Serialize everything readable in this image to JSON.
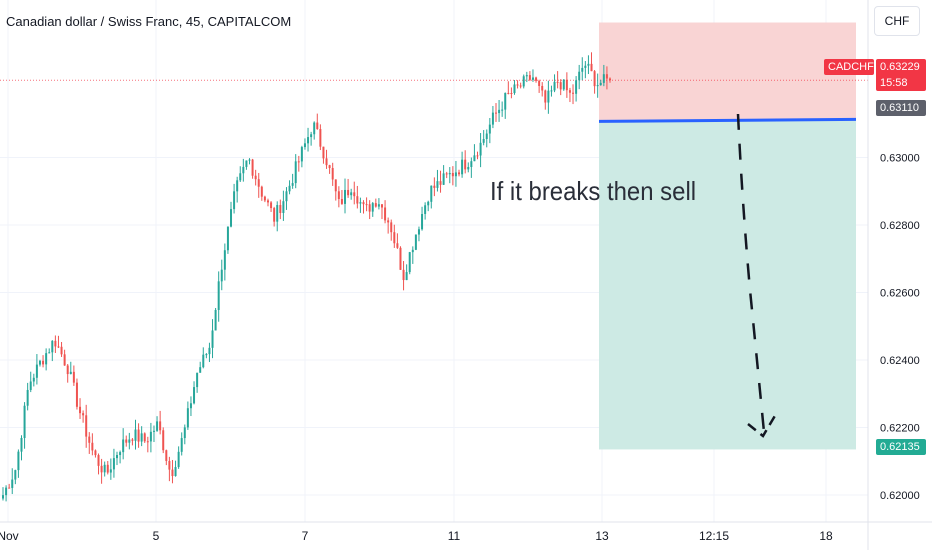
{
  "header": {
    "title": "Canadian dollar / Swiss Franc, 45, CAPITALCOM",
    "currency_button": "CHF"
  },
  "price_tags": {
    "symbol": "CADCHF",
    "last_price": "0.63229",
    "countdown": "15:58",
    "entry_price": "0.63110",
    "target_price": "0.62135"
  },
  "annotation": "If it breaks then sell",
  "colors": {
    "up": "#26a69a",
    "down": "#ef5350",
    "stop_zone": "#f9d4d4",
    "target_zone": "#cdeae4",
    "entry_line": "#2962ff",
    "last_tag": "#f23645",
    "entry_tag": "#5d606b",
    "target_tag": "#22ab94"
  },
  "chart_data": {
    "type": "candlestick",
    "title": "Canadian dollar / Swiss Franc, 45, CAPITALCOM",
    "ylim": [
      0.6194,
      0.635
    ],
    "y_ticks": [
      "0.62000",
      "0.62200",
      "0.62400",
      "0.62600",
      "0.62800",
      "0.63000"
    ],
    "x_ticks": [
      "Nov",
      "5",
      "7",
      "11",
      "13",
      "12:15",
      "18"
    ],
    "grid": true,
    "legend": "none",
    "close_path": [
      [
        "Nov",
        0.62
      ],
      [
        "",
        0.6208
      ],
      [
        "",
        0.6233
      ],
      [
        "",
        0.624
      ],
      [
        "",
        0.6246
      ],
      [
        "",
        0.6238
      ],
      [
        "",
        0.6224
      ],
      [
        "",
        0.6212
      ],
      [
        "",
        0.6206
      ],
      [
        "",
        0.6214
      ],
      [
        "",
        0.6218
      ],
      [
        "5",
        0.6216
      ],
      [
        "",
        0.6221
      ],
      [
        "",
        0.6206
      ],
      [
        "",
        0.6218
      ],
      [
        "",
        0.6236
      ],
      [
        "",
        0.6244
      ],
      [
        "",
        0.627
      ],
      [
        "",
        0.629
      ],
      [
        "",
        0.63
      ],
      [
        "",
        0.629
      ],
      [
        "",
        0.6282
      ],
      [
        "",
        0.629
      ],
      [
        "7",
        0.63
      ],
      [
        "",
        0.631
      ],
      [
        "",
        0.63
      ],
      [
        "",
        0.6286
      ],
      [
        "",
        0.6292
      ],
      [
        "",
        0.6284
      ],
      [
        "",
        0.6288
      ],
      [
        "",
        0.628
      ],
      [
        "",
        0.6265
      ],
      [
        "",
        0.6278
      ],
      [
        "",
        0.629
      ],
      [
        "11",
        0.6293
      ],
      [
        "",
        0.6296
      ],
      [
        "",
        0.6299
      ],
      [
        "",
        0.6304
      ],
      [
        "",
        0.6312
      ],
      [
        "",
        0.6318
      ],
      [
        "",
        0.6321
      ],
      [
        "",
        0.6324
      ],
      [
        "",
        0.6316
      ],
      [
        "",
        0.6323
      ],
      [
        "",
        0.6318
      ],
      [
        "",
        0.6328
      ],
      [
        "",
        0.6322
      ],
      [
        "13",
        0.63229
      ]
    ],
    "series": [
      {
        "name": "CADCHF",
        "last": 0.63229
      }
    ],
    "position": {
      "direction": "short",
      "entry": 0.6311,
      "stop": 0.634,
      "target": 0.62135
    },
    "annotations": [
      "If it breaks then sell"
    ]
  }
}
